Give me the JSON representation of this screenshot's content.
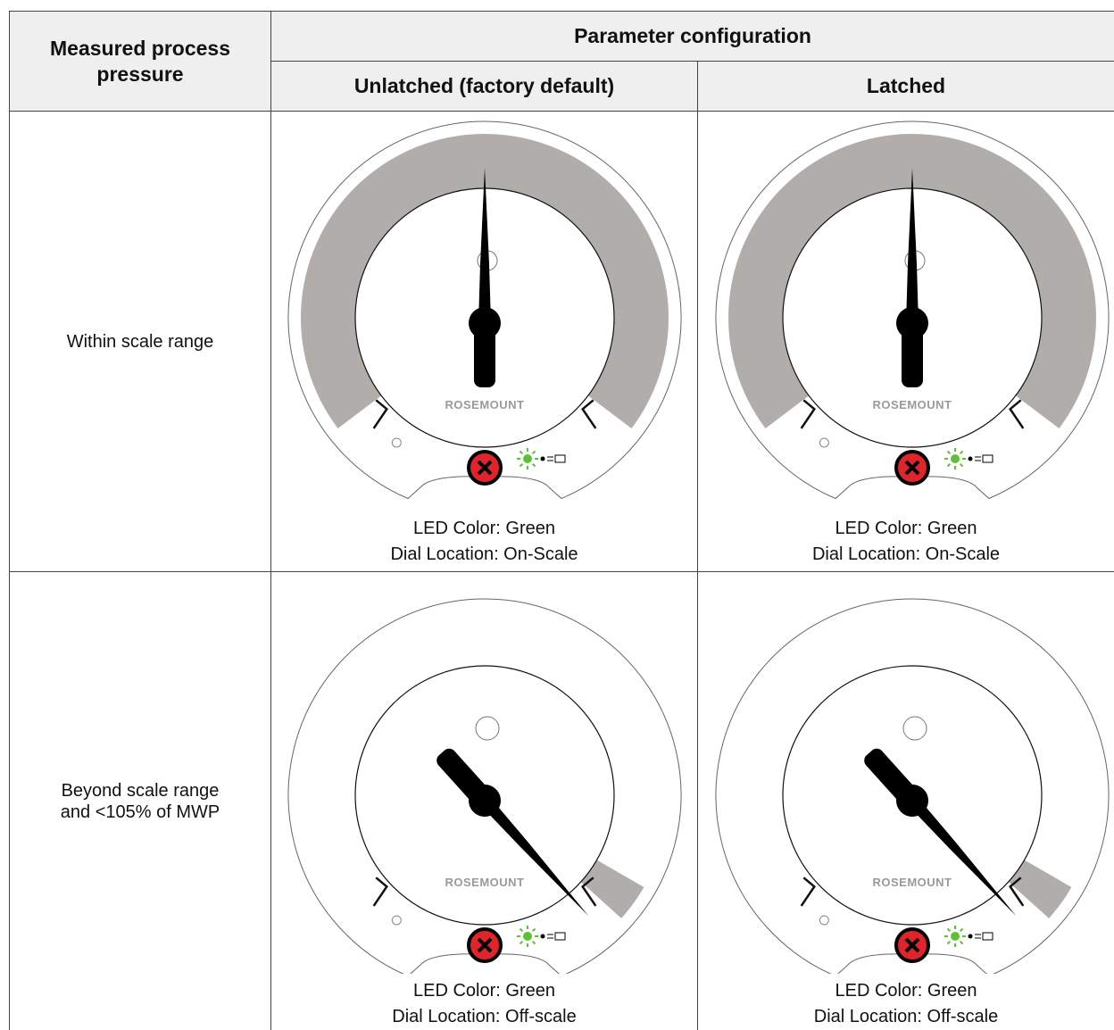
{
  "table": {
    "header": {
      "corner": "Measured process pressure",
      "group": "Parameter configuration",
      "columns": [
        "Unlatched (factory default)",
        "Latched"
      ]
    },
    "rows": [
      {
        "label": [
          "Within scale range"
        ],
        "cells": [
          {
            "lines": [
              "LED Color: Green",
              "Dial Location: On-Scale"
            ]
          },
          {
            "lines": [
              "LED Color: Green",
              "Dial Location: On-Scale"
            ]
          }
        ]
      },
      {
        "label": [
          "Beyond scale range",
          "and <105% of MWP"
        ],
        "cells": [
          {
            "lines": [
              "LED Color: Green",
              "Dial Location: Off-scale"
            ]
          },
          {
            "lines": [
              "LED Color: Green",
              "Dial Location: Off-scale"
            ]
          }
        ]
      }
    ]
  },
  "brand": "ROSEMOUNT"
}
